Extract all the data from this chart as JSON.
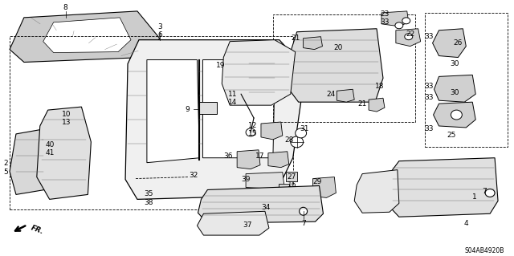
{
  "diagram_code": "S04AB4920B",
  "bg_color": "#ffffff",
  "fig_width": 6.4,
  "fig_height": 3.19,
  "dpi": 100,
  "label_fontsize": 6.5
}
